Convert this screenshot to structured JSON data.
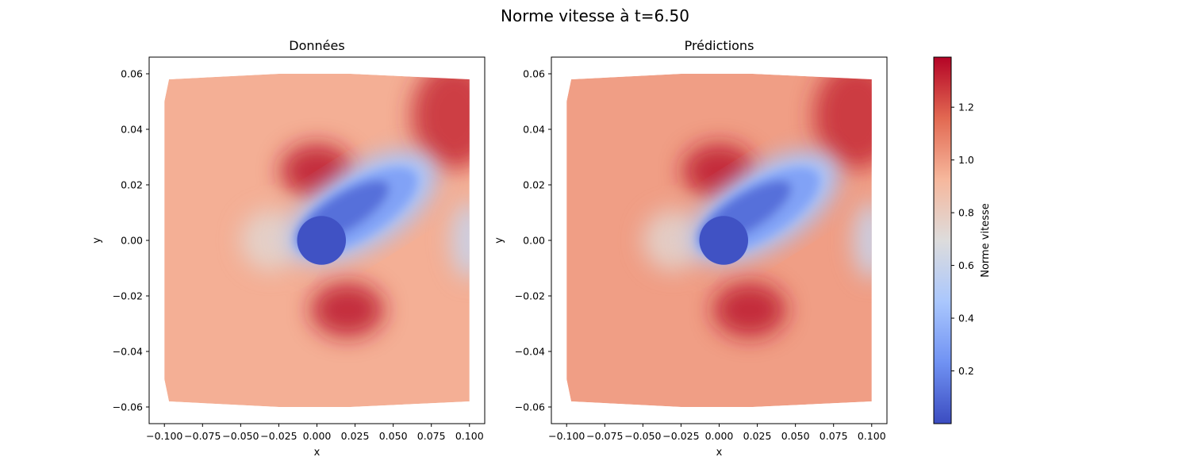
{
  "figure": {
    "suptitle": "Norme vitesse à t=6.50"
  },
  "chart_data": [
    {
      "type": "heatmap",
      "title": "Données",
      "xlabel": "x",
      "ylabel": "y",
      "xlim": [
        -0.11,
        0.11
      ],
      "ylim": [
        -0.066,
        0.066
      ],
      "xticks": [
        "−0.100",
        "−0.075",
        "−0.050",
        "−0.025",
        "0.000",
        "0.025",
        "0.050",
        "0.075",
        "0.100"
      ],
      "xtick_values": [
        -0.1,
        -0.075,
        -0.05,
        -0.025,
        0.0,
        0.025,
        0.05,
        0.075,
        0.1
      ],
      "yticks": [
        "−0.06",
        "−0.04",
        "−0.02",
        "0.00",
        "0.02",
        "0.04",
        "0.06"
      ],
      "ytick_values": [
        -0.06,
        -0.04,
        -0.02,
        0.0,
        0.02,
        0.04,
        0.06
      ],
      "field": {
        "base": 0.95,
        "domain": [
          [
            -0.097,
            0.058
          ],
          [
            -0.025,
            0.06
          ],
          [
            0.022,
            0.06
          ],
          [
            0.1,
            0.058
          ],
          [
            0.1,
            -0.058
          ],
          [
            0.022,
            -0.06
          ],
          [
            -0.025,
            -0.06
          ],
          [
            -0.097,
            -0.058
          ],
          [
            -0.1,
            -0.05
          ],
          [
            -0.1,
            0.05
          ]
        ],
        "wake": {
          "center": [
            0.03,
            0.012
          ],
          "min_value": 0.02,
          "extent": "from x≈-0.02 to x≈0.08, tilted upward to the right"
        },
        "high_zones": [
          {
            "center": [
              0.0,
              0.025
            ],
            "value": 1.35
          },
          {
            "center": [
              0.02,
              -0.025
            ],
            "value": 1.35
          },
          {
            "center": [
              0.09,
              0.045
            ],
            "value": 1.3
          }
        ]
      }
    },
    {
      "type": "heatmap",
      "title": "Prédictions",
      "xlabel": "x",
      "ylabel": "y",
      "xlim": [
        -0.11,
        0.11
      ],
      "ylim": [
        -0.066,
        0.066
      ],
      "xticks": [
        "−0.100",
        "−0.075",
        "−0.050",
        "−0.025",
        "0.000",
        "0.025",
        "0.050",
        "0.075",
        "0.100"
      ],
      "xtick_values": [
        -0.1,
        -0.075,
        -0.05,
        -0.025,
        0.0,
        0.025,
        0.05,
        0.075,
        0.1
      ],
      "yticks": [
        "−0.06",
        "−0.04",
        "−0.02",
        "0.00",
        "0.02",
        "0.04",
        "0.06"
      ],
      "ytick_values": [
        -0.06,
        -0.04,
        -0.02,
        0.0,
        0.02,
        0.04,
        0.06
      ],
      "field": {
        "base": 1.0,
        "domain": [
          [
            -0.097,
            0.058
          ],
          [
            -0.025,
            0.06
          ],
          [
            0.022,
            0.06
          ],
          [
            0.1,
            0.058
          ],
          [
            0.1,
            -0.058
          ],
          [
            0.022,
            -0.06
          ],
          [
            -0.025,
            -0.06
          ],
          [
            -0.097,
            -0.058
          ],
          [
            -0.1,
            -0.05
          ],
          [
            -0.1,
            0.05
          ]
        ],
        "wake": {
          "center": [
            0.03,
            0.012
          ],
          "min_value": 0.02,
          "extent": "from x≈-0.02 to x≈0.08, tilted upward to the right"
        },
        "high_zones": [
          {
            "center": [
              0.0,
              0.025
            ],
            "value": 1.35
          },
          {
            "center": [
              0.02,
              -0.025
            ],
            "value": 1.35
          },
          {
            "center": [
              0.09,
              0.045
            ],
            "value": 1.3
          }
        ]
      }
    }
  ],
  "colorbar": {
    "label": "Norme vitesse",
    "colormap": "coolwarm",
    "range": [
      0.0,
      1.39
    ],
    "ticks": [
      "0.2",
      "0.4",
      "0.6",
      "0.8",
      "1.0",
      "1.2"
    ],
    "tick_values": [
      0.2,
      0.4,
      0.6,
      0.8,
      1.0,
      1.2
    ],
    "colors": [
      "#3b4cc0",
      "#7092f3",
      "#aac7fd",
      "#dddcdc",
      "#f6b79c",
      "#e26952",
      "#b40426"
    ]
  }
}
